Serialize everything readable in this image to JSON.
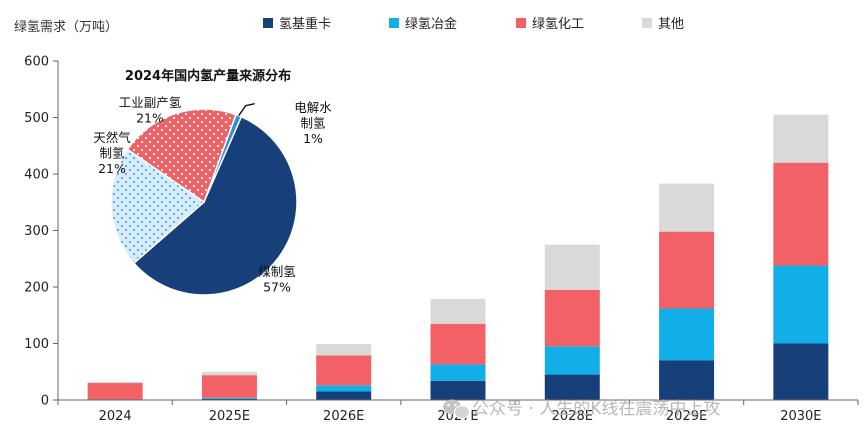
{
  "chart_data": [
    {
      "type": "bar",
      "stacked": true,
      "ylabel": "绿氢需求（万吨）",
      "ylim": [
        0,
        600
      ],
      "yticks": [
        0,
        100,
        200,
        300,
        400,
        500,
        600
      ],
      "grid": false,
      "legend_position": "top",
      "categories": [
        "2024",
        "2025E",
        "2026E",
        "2027E",
        "2028E",
        "2029E",
        "2030E"
      ],
      "series": [
        {
          "name": "氢基重卡",
          "color": "#17407a",
          "values": [
            0,
            2,
            15,
            34,
            45,
            70,
            100
          ]
        },
        {
          "name": "绿氢冶金",
          "color": "#12aee8",
          "values": [
            0,
            2,
            11,
            29,
            50,
            92,
            138
          ]
        },
        {
          "name": "绿氢化工",
          "color": "#f26166",
          "values": [
            30,
            40,
            53,
            72,
            100,
            136,
            182
          ]
        },
        {
          "name": "其他",
          "color": "#d9d9d9",
          "values": [
            2,
            6,
            20,
            44,
            80,
            85,
            85
          ]
        }
      ]
    },
    {
      "type": "pie",
      "title": "2024年国内氢产量来源分布",
      "slices": [
        {
          "label_lines": [
            "煤制氢"
          ],
          "value": 57,
          "value_label": "57%",
          "color": "#17407a",
          "pattern": "none"
        },
        {
          "label_lines": [
            "天然气",
            "制氢"
          ],
          "value": 21,
          "value_label": "21%",
          "color": "#c6e4f7",
          "pattern": "dots-blue"
        },
        {
          "label_lines": [
            "工业副产氢"
          ],
          "value": 21,
          "value_label": "21%",
          "color": "#ee6166",
          "pattern": "dots-white"
        },
        {
          "label_lines": [
            "电解水",
            "制氢"
          ],
          "value": 1,
          "value_label": "1%",
          "color": "#2f8fd8",
          "pattern": "none"
        }
      ]
    }
  ],
  "watermark": "公众号 · 人生的K线在震荡中上攻",
  "watermark_icon": "wechat-icon"
}
